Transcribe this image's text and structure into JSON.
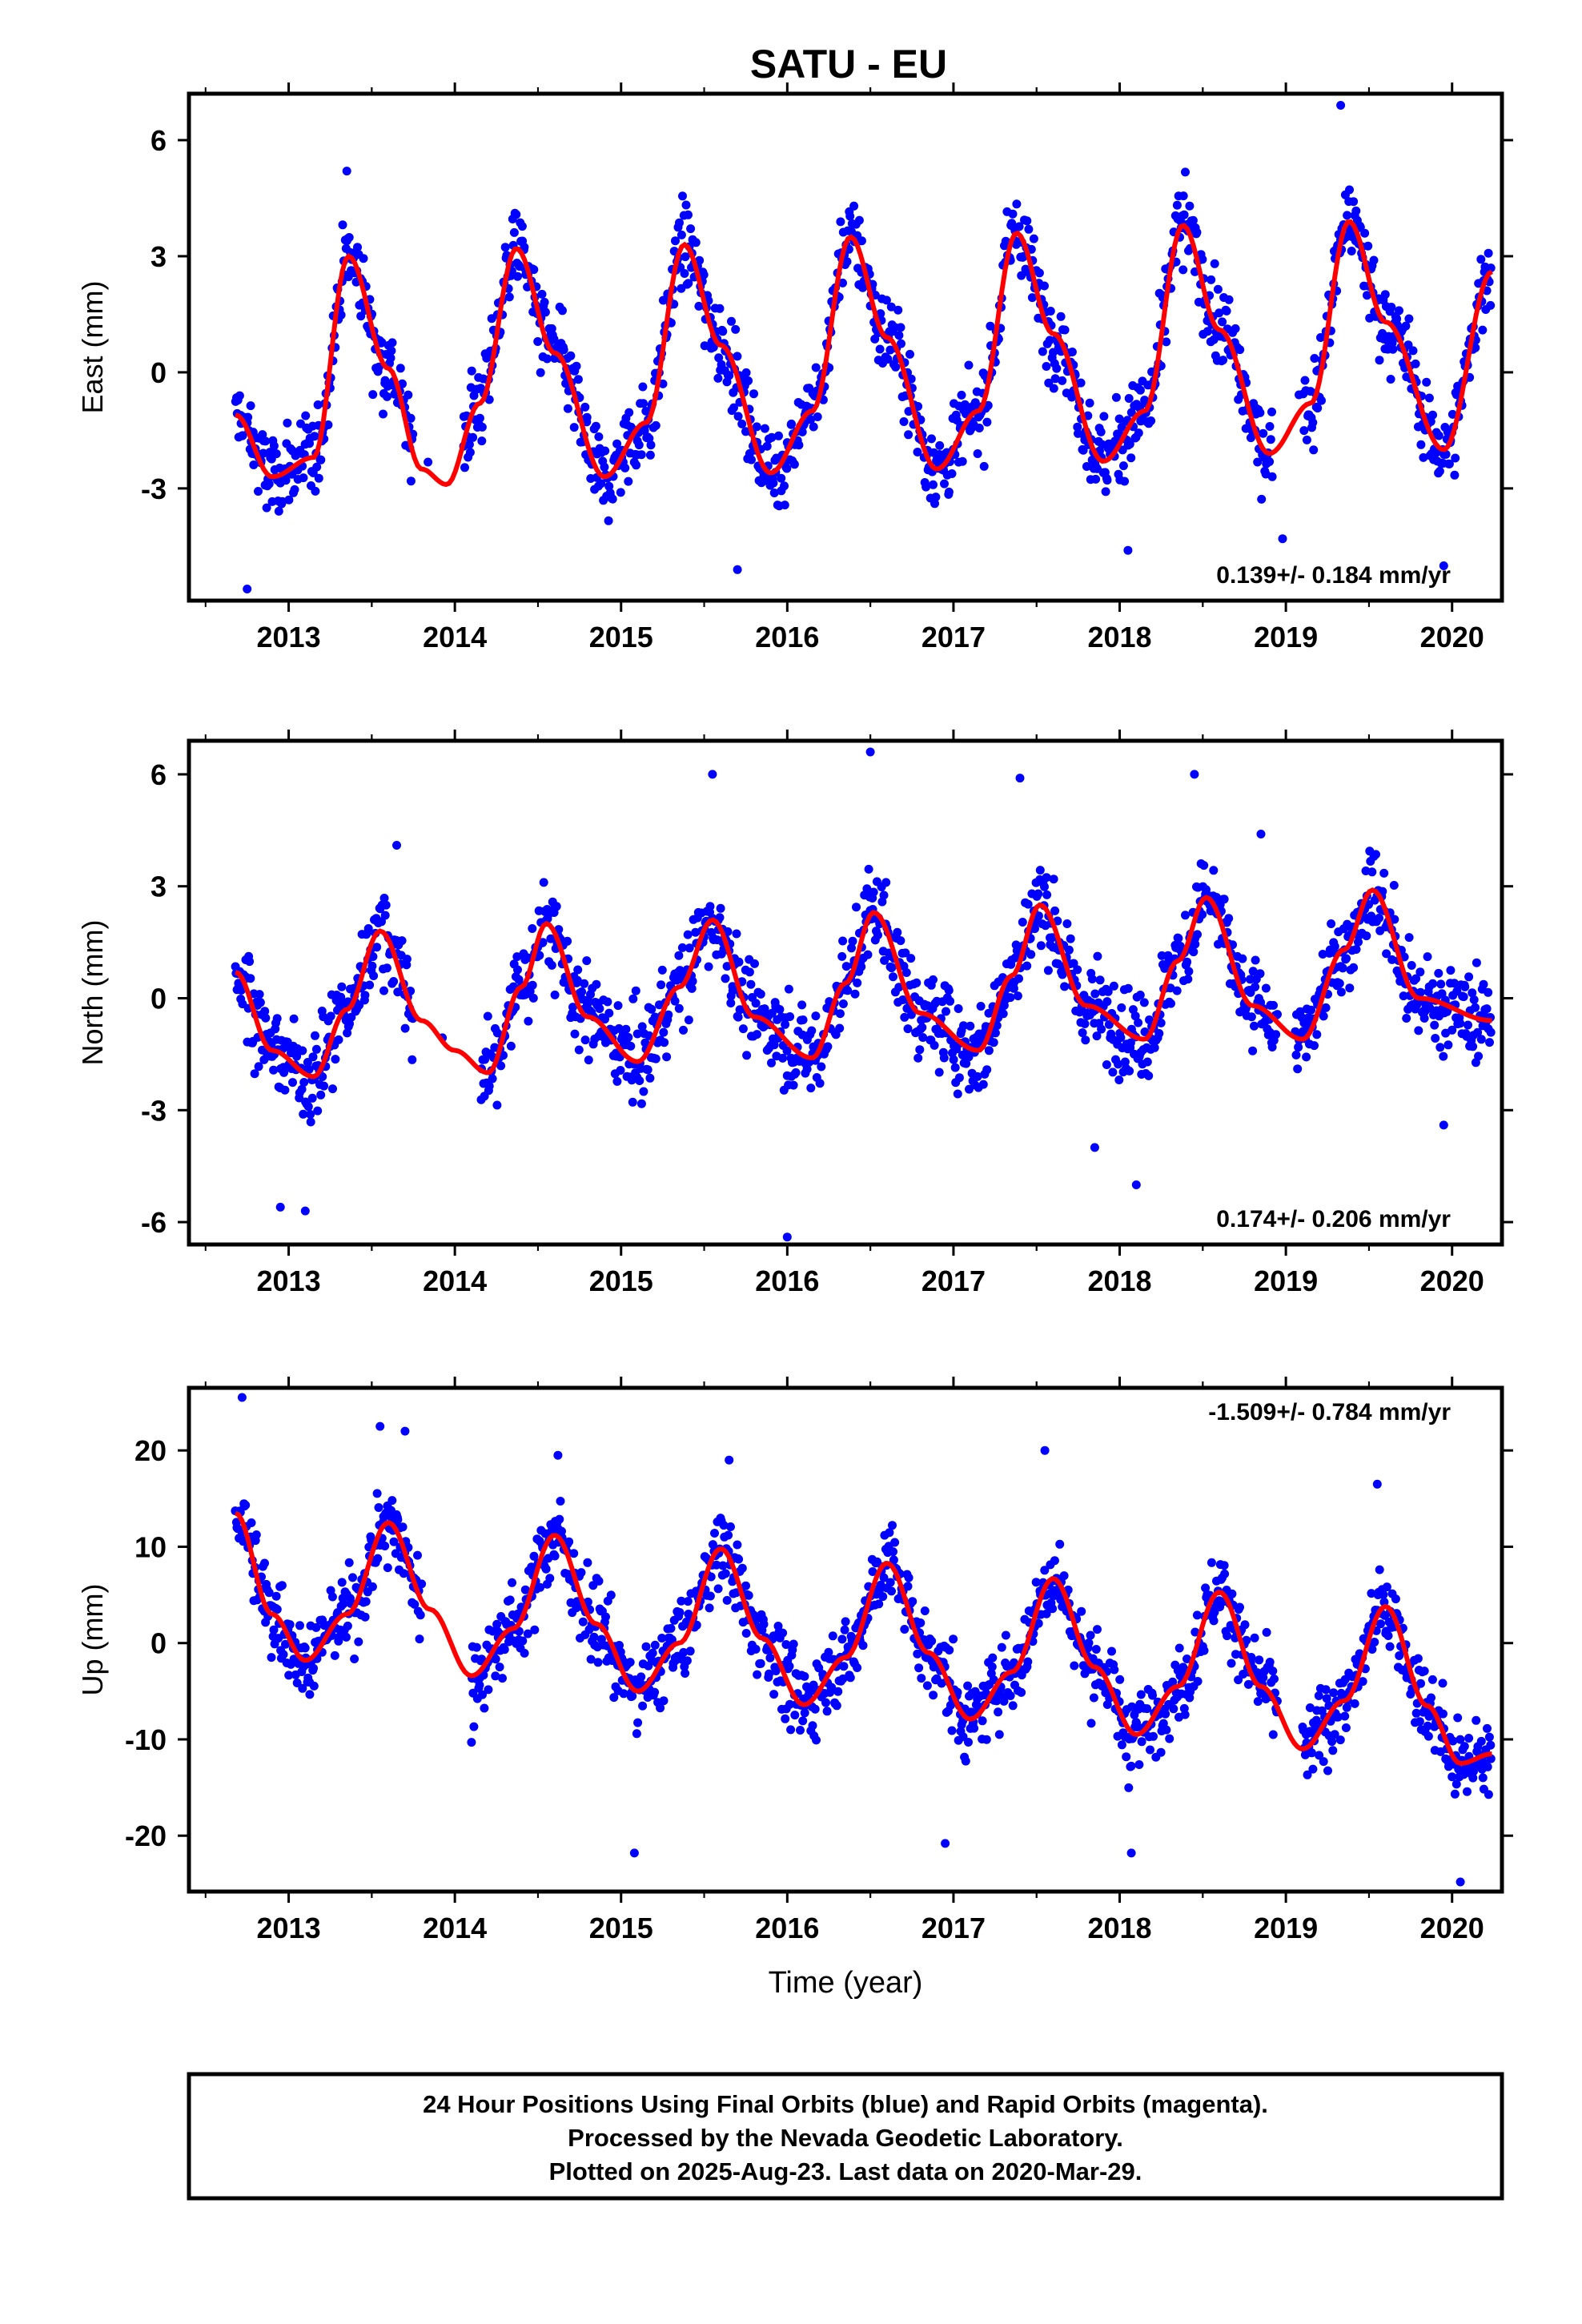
{
  "title": "SATU - EU",
  "xlabel": "Time (year)",
  "footer": {
    "line1": "24 Hour Positions Using Final Orbits (blue) and Rapid Orbits (magenta).",
    "line2": "Processed by the Nevada Geodetic Laboratory.",
    "line3": "Plotted on 2025-Aug-23. Last data on 2020-Mar-29."
  },
  "colors": {
    "points": "#0000ff",
    "fit": "#ff0000",
    "frame": "#000000"
  },
  "chart_data": [
    {
      "type": "scatter",
      "panel": "east",
      "ylabel": "East (mm)",
      "rate": "0.139+/- 0.184 mm/yr",
      "rate_position": "bottom-right",
      "xlim": [
        2012.4,
        2020.3
      ],
      "ylim": [
        -5.9,
        7.2
      ],
      "xticks": [
        2013,
        2014,
        2015,
        2016,
        2017,
        2018,
        2019,
        2020
      ],
      "xtick_labels": [
        "2013",
        "2014",
        "2015",
        "2016",
        "2017",
        "2018",
        "2019",
        "2020"
      ],
      "yticks": [
        -3,
        0,
        3,
        6
      ],
      "ytick_labels": [
        "-3",
        "0",
        "3",
        "6"
      ],
      "fit": {
        "x": [
          2012.68,
          2012.9,
          2013.15,
          2013.36,
          2013.6,
          2013.8,
          2013.95,
          2014.15,
          2014.37,
          2014.6,
          2014.9,
          2015.15,
          2015.38,
          2015.6,
          2015.9,
          2016.15,
          2016.38,
          2016.6,
          2016.9,
          2017.15,
          2017.38,
          2017.6,
          2017.9,
          2018.15,
          2018.38,
          2018.6,
          2018.9,
          2019.15,
          2019.38,
          2019.6,
          2019.95,
          2020.24
        ],
        "y": [
          -1.1,
          -2.7,
          -2.2,
          3.0,
          0.1,
          -2.5,
          -2.9,
          -0.8,
          3.2,
          0.5,
          -2.7,
          -1.3,
          3.3,
          0.7,
          -2.6,
          -1.0,
          3.5,
          0.9,
          -2.5,
          -1.0,
          3.6,
          1.0,
          -2.3,
          -1.0,
          3.8,
          1.1,
          -2.1,
          -0.8,
          3.9,
          1.3,
          -2.0,
          2.6
        ]
      },
      "points": {
        "gaps": [
          [
            2013.75,
            2014.05
          ],
          [
            2018.92,
            2019.1
          ]
        ],
        "spread": 0.9,
        "outliers": [
          [
            2012.75,
            -5.6
          ],
          [
            2013.35,
            5.2
          ],
          [
            2015.7,
            -5.1
          ],
          [
            2018.05,
            -4.6
          ],
          [
            2019.33,
            6.9
          ],
          [
            2019.95,
            -5.0
          ],
          [
            2018.98,
            -4.3
          ]
        ]
      }
    },
    {
      "type": "scatter",
      "panel": "north",
      "ylabel": "North (mm)",
      "rate": "0.174+/- 0.206 mm/yr",
      "rate_position": "bottom-right",
      "xlim": [
        2012.4,
        2020.3
      ],
      "ylim": [
        -6.6,
        6.9
      ],
      "xticks": [
        2013,
        2014,
        2015,
        2016,
        2017,
        2018,
        2019,
        2020
      ],
      "xtick_labels": [
        "2013",
        "2014",
        "2015",
        "2016",
        "2017",
        "2018",
        "2019",
        "2020"
      ],
      "yticks": [
        -6,
        -3,
        0,
        3,
        6
      ],
      "ytick_labels": [
        "-6",
        "-3",
        "0",
        "3",
        "6"
      ],
      "fit": {
        "x": [
          2012.68,
          2012.9,
          2013.15,
          2013.35,
          2013.55,
          2013.8,
          2014.0,
          2014.2,
          2014.4,
          2014.55,
          2014.8,
          2015.1,
          2015.35,
          2015.55,
          2015.8,
          2016.15,
          2016.35,
          2016.52,
          2016.8,
          2017.15,
          2017.35,
          2017.52,
          2017.8,
          2018.15,
          2018.35,
          2018.52,
          2018.8,
          2019.1,
          2019.35,
          2019.52,
          2019.8,
          2020.24
        ],
        "y": [
          0.7,
          -1.4,
          -2.1,
          -0.3,
          1.8,
          -0.6,
          -1.4,
          -2.0,
          0.3,
          2.0,
          -0.5,
          -1.7,
          0.3,
          2.1,
          -0.5,
          -1.6,
          0.4,
          2.3,
          -0.4,
          -1.4,
          0.6,
          2.5,
          -0.2,
          -1.1,
          1.0,
          2.7,
          -0.2,
          -1.1,
          1.3,
          2.9,
          0.0,
          -0.6
        ]
      },
      "points": {
        "gaps": [
          [
            2013.75,
            2014.15
          ],
          [
            2018.95,
            2019.05
          ]
        ],
        "spread": 1.0,
        "outliers": [
          [
            2012.95,
            -5.6
          ],
          [
            2013.1,
            -5.7
          ],
          [
            2013.65,
            4.1
          ],
          [
            2015.55,
            6.0
          ],
          [
            2016.0,
            -6.4
          ],
          [
            2016.5,
            6.6
          ],
          [
            2017.4,
            5.9
          ],
          [
            2018.1,
            -5.0
          ],
          [
            2018.45,
            6.0
          ],
          [
            2018.85,
            4.4
          ],
          [
            2017.85,
            -4.0
          ],
          [
            2019.95,
            -3.4
          ]
        ]
      }
    },
    {
      "type": "scatter",
      "panel": "up",
      "ylabel": "Up (mm)",
      "rate": "-1.509+/- 0.784 mm/yr",
      "rate_position": "top-right",
      "xlim": [
        2012.4,
        2020.3
      ],
      "ylim": [
        -25.8,
        26.5
      ],
      "xticks": [
        2013,
        2014,
        2015,
        2016,
        2017,
        2018,
        2019,
        2020
      ],
      "xtick_labels": [
        "2013",
        "2014",
        "2015",
        "2016",
        "2017",
        "2018",
        "2019",
        "2020"
      ],
      "yticks": [
        -20,
        -10,
        0,
        10,
        20
      ],
      "ytick_labels": [
        "-20",
        "-10",
        "0",
        "10",
        "20"
      ],
      "fit": {
        "x": [
          2012.68,
          2012.9,
          2013.1,
          2013.35,
          2013.6,
          2013.85,
          2014.1,
          2014.35,
          2014.6,
          2014.85,
          2015.1,
          2015.35,
          2015.6,
          2015.85,
          2016.1,
          2016.35,
          2016.6,
          2016.85,
          2017.1,
          2017.35,
          2017.6,
          2017.85,
          2018.1,
          2018.35,
          2018.6,
          2018.85,
          2019.1,
          2019.35,
          2019.6,
          2019.85,
          2020.05,
          2020.24
        ],
        "y": [
          13.5,
          3.0,
          -1.8,
          3.0,
          12.5,
          3.5,
          -3.4,
          1.5,
          11.2,
          2.0,
          -5.0,
          0.0,
          9.8,
          0.5,
          -6.4,
          -1.5,
          8.3,
          -1.0,
          -7.9,
          -3.0,
          6.7,
          -2.5,
          -9.5,
          -4.5,
          5.3,
          -4.5,
          -11.0,
          -6.0,
          3.8,
          -6.5,
          -12.5,
          -11.5
        ]
      },
      "points": {
        "gaps": [
          [
            2013.8,
            2014.1
          ],
          [
            2018.95,
            2019.1
          ]
        ],
        "spread": 3.5,
        "outliers": [
          [
            2012.72,
            25.5
          ],
          [
            2013.55,
            22.5
          ],
          [
            2013.7,
            22.0
          ],
          [
            2014.62,
            19.5
          ],
          [
            2015.08,
            -21.8
          ],
          [
            2015.65,
            19.0
          ],
          [
            2017.55,
            20.0
          ],
          [
            2018.07,
            -21.8
          ],
          [
            2019.55,
            16.5
          ],
          [
            2020.05,
            -24.8
          ],
          [
            2016.95,
            -20.8
          ],
          [
            2014.1,
            -10.3
          ]
        ]
      }
    }
  ]
}
